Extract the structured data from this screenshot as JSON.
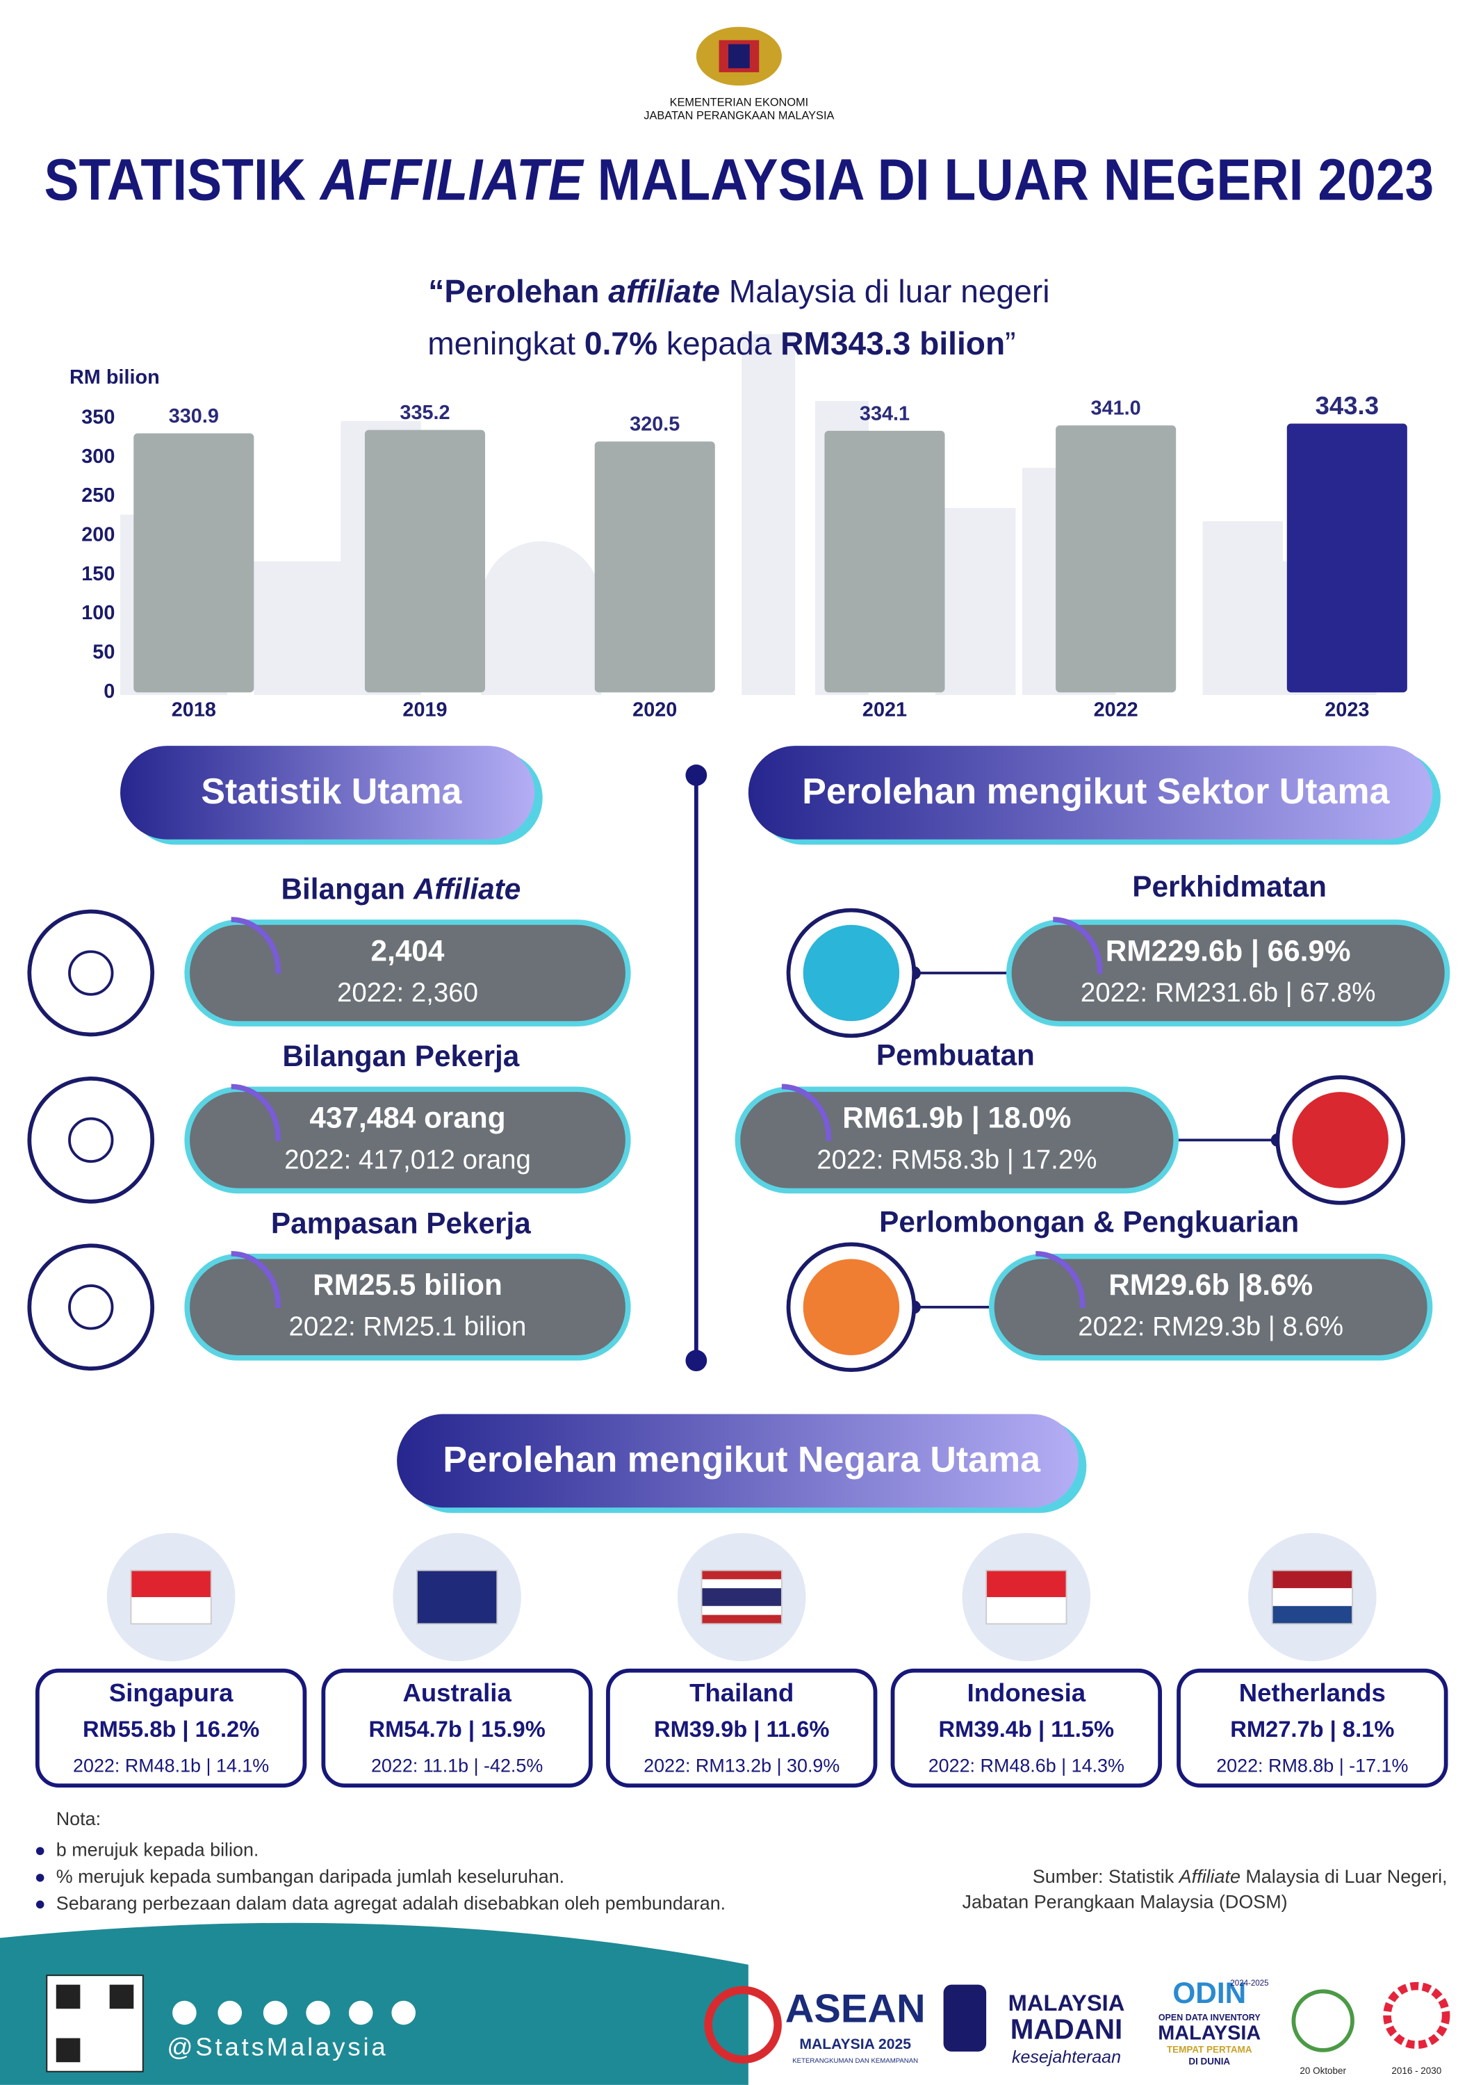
{
  "header": {
    "ministry": "KEMENTERIAN EKONOMI",
    "department": "JABATAN PERANGKAAN MALAYSIA",
    "title_parts": [
      "STATISTIK ",
      "AFFILIATE",
      " MALAYSIA DI LUAR NEGERI 2023"
    ]
  },
  "quote": {
    "line1": [
      "“Perolehan ",
      "affiliate",
      " Malaysia di luar negeri"
    ],
    "line2": [
      "meningkat ",
      "0.7%",
      " kepada ",
      "RM343.3 bilion",
      "”"
    ]
  },
  "chart_data": {
    "type": "bar",
    "y_label": "RM bilion",
    "categories": [
      "2018",
      "2019",
      "2020",
      "2021",
      "2022",
      "2023"
    ],
    "values": [
      330.9,
      335.2,
      320.5,
      334.1,
      341.0,
      343.3
    ],
    "value_labels": [
      "330.9",
      "335.2",
      "320.5",
      "334.1",
      "341.0",
      "343.3"
    ],
    "colors": [
      "#a4adac",
      "#a4adac",
      "#a4adac",
      "#a4adac",
      "#a4adac",
      "#27278f"
    ],
    "ylim": [
      0,
      350
    ],
    "yticks": [
      0,
      50,
      100,
      150,
      200,
      250,
      300,
      350
    ],
    "grid": false
  },
  "key_stats": {
    "title": "Statistik Utama",
    "items": [
      {
        "label": [
          "Bilangan ",
          "Affiliate"
        ],
        "value": "2,404",
        "previous": "2022: 2,360"
      },
      {
        "label": [
          "Bilangan Pekerja",
          ""
        ],
        "value": "437,484 orang",
        "previous": "2022: 417,012 orang"
      },
      {
        "label": [
          "Pampasan Pekerja",
          ""
        ],
        "value": "RM25.5 bilion",
        "previous": "2022: RM25.1 bilion"
      }
    ]
  },
  "sectors": {
    "title": "Perolehan mengikut Sektor Utama",
    "items": [
      {
        "name": "Perkhidmatan",
        "value": "RM229.6b | 66.9%",
        "previous": "2022: RM231.6b | 67.8%"
      },
      {
        "name": "Pembuatan",
        "value": "RM61.9b | 18.0%",
        "previous": "2022: RM58.3b | 17.2%"
      },
      {
        "name": "Perlombongan & Pengkuarian",
        "value": "RM29.6b |8.6%",
        "previous": "2022: RM29.3b | 8.6%"
      }
    ]
  },
  "countries": {
    "title": "Perolehan mengikut Negara Utama",
    "items": [
      {
        "name": "Singapura",
        "value": "RM55.8b | 16.2%",
        "previous": "2022: RM48.1b | 14.1%"
      },
      {
        "name": "Australia",
        "value": "RM54.7b | 15.9%",
        "previous": "2022: 11.1b | -42.5%"
      },
      {
        "name": "Thailand",
        "value": "RM39.9b | 11.6%",
        "previous": "2022: RM13.2b | 30.9%"
      },
      {
        "name": "Indonesia",
        "value": "RM39.4b | 11.5%",
        "previous": "2022: RM48.6b | 14.3%"
      },
      {
        "name": "Netherlands",
        "value": "RM27.7b | 8.1%",
        "previous": "2022: RM8.8b | -17.1%"
      }
    ]
  },
  "notes": {
    "title": "Nota:",
    "items": [
      "b merujuk kepada bilion.",
      "% merujuk kepada sumbangan daripada jumlah keseluruhan.",
      "Sebarang perbezaan dalam data agregat adalah disebabkan oleh pembundaran."
    ]
  },
  "source": {
    "line1": [
      "Sumber: Statistik ",
      "Affiliate",
      " Malaysia di Luar Negeri,"
    ],
    "line2": "Jabatan Perangkaan Malaysia (DOSM)"
  },
  "footer": {
    "handle": "@StatsMalaysia",
    "logos": [
      "ASEAN",
      "MALAYSIA 2025",
      "KETERANGKUMAN DAN KEMAMPANAN",
      "MALAYSIA",
      "MADANI",
      "kesejahteraan",
      "ODIN",
      "OPEN DATA INVENTORY",
      "MALAYSIA",
      "TEMPAT PERTAMA",
      "DI DUNIA",
      "2024-2025",
      "20 Oktober",
      "2016 - 2030"
    ]
  }
}
